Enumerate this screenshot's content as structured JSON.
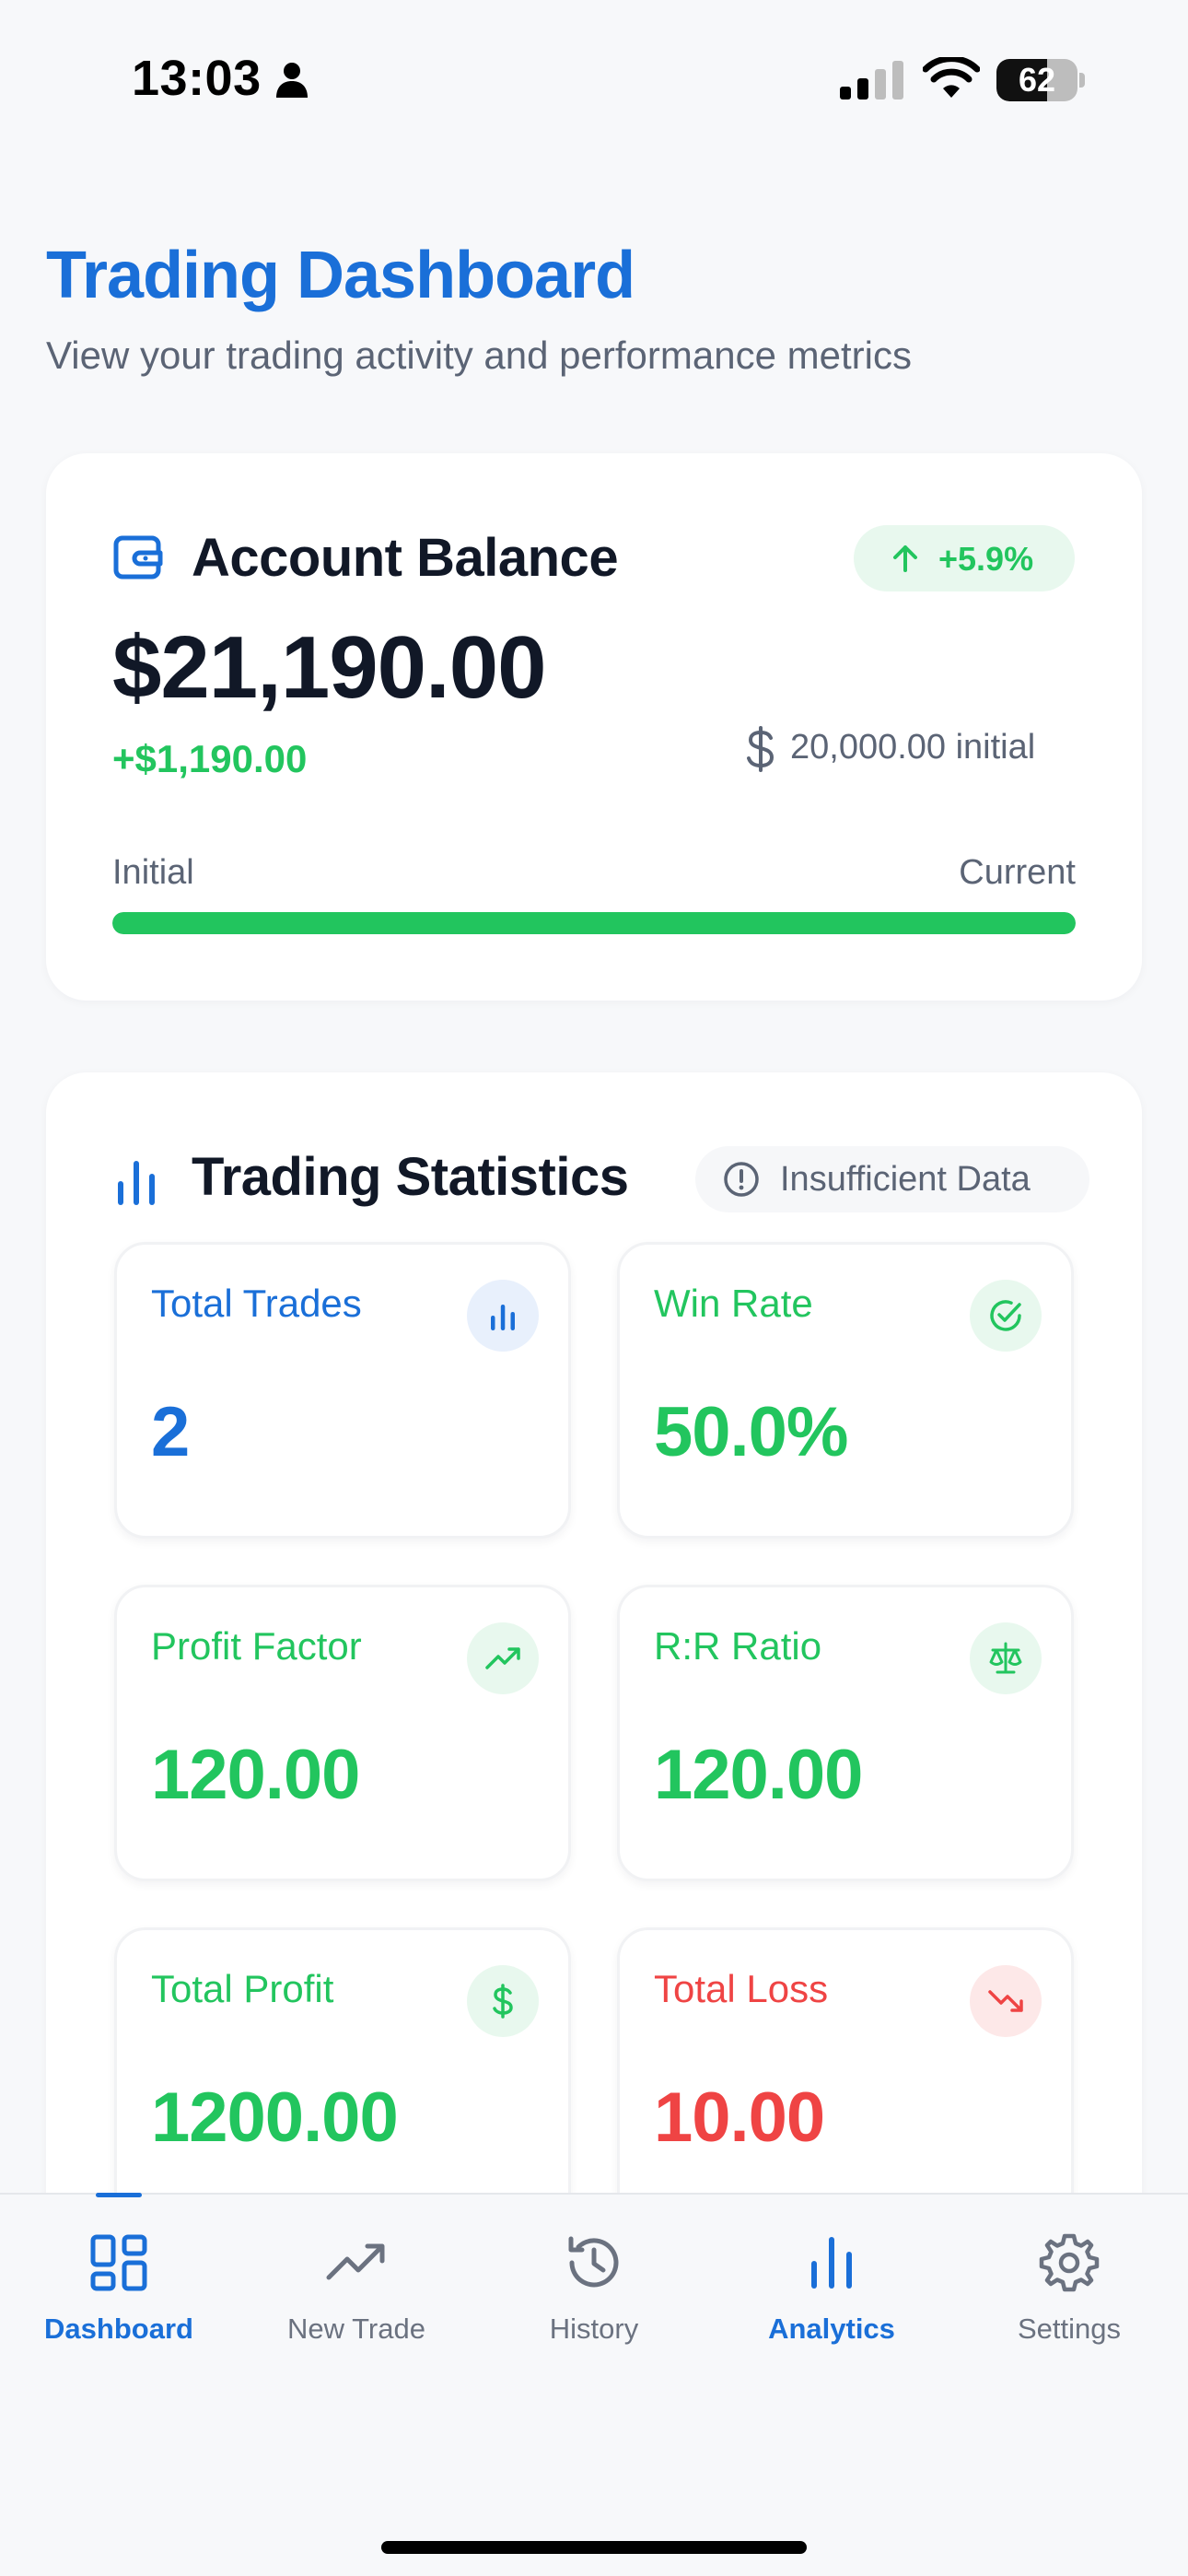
{
  "status_bar": {
    "time": "13:03",
    "battery": "62",
    "battery_level": 0.62,
    "icons": [
      "person-icon",
      "signal-icon",
      "wifi-icon",
      "battery-icon"
    ]
  },
  "header": {
    "title": "Trading Dashboard",
    "subtitle": "View your trading activity and performance metrics"
  },
  "balance": {
    "title": "Account Balance",
    "growth": "+5.9%",
    "value": "$21,190.00",
    "change": "+$1,190.00",
    "initial": "20,000.00 initial",
    "label_initial": "Initial",
    "label_current": "Current",
    "progress": 1.0
  },
  "stats": {
    "title": "Trading Statistics",
    "badge": "Insufficient Data",
    "tiles": [
      {
        "label": "Total Trades",
        "value": "2",
        "icon": "bar-chart-icon",
        "color": "#1a6fd8"
      },
      {
        "label": "Win Rate",
        "value": "50.0%",
        "icon": "check-circle-icon",
        "color": "#22c55e"
      },
      {
        "label": "Profit Factor",
        "value": "120.00",
        "icon": "trending-up-icon",
        "color": "#22c55e"
      },
      {
        "label": "R:R Ratio",
        "value": "120.00",
        "icon": "scale-icon",
        "color": "#22c55e"
      },
      {
        "label": "Total Profit",
        "value": "1200.00",
        "icon": "dollar-icon",
        "color": "#22c55e"
      },
      {
        "label": "Total Loss",
        "value": "10.00",
        "icon": "trending-down-icon",
        "color": "#ef4444"
      }
    ]
  },
  "nav": {
    "items": [
      {
        "label": "Dashboard",
        "icon": "dashboard-icon",
        "active": true
      },
      {
        "label": "New Trade",
        "icon": "trending-up-icon",
        "active": false
      },
      {
        "label": "History",
        "icon": "history-icon",
        "active": false
      },
      {
        "label": "Analytics",
        "icon": "bar-chart-icon",
        "active": false
      },
      {
        "label": "Settings",
        "icon": "gear-icon",
        "active": false
      }
    ]
  },
  "colors": {
    "accent": "#1a6fd8",
    "positive": "#22c55e",
    "negative": "#ef4444",
    "muted": "#5b6475"
  }
}
